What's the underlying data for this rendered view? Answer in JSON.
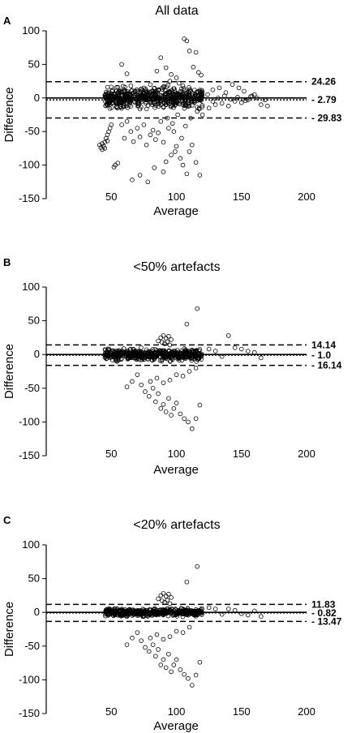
{
  "chart_data": [
    {
      "type": "scatter",
      "letter": "A",
      "title": "All data",
      "xlabel": "Average",
      "ylabel": "Difference",
      "xlim": [
        0,
        200
      ],
      "ylim": [
        -150,
        100
      ],
      "xticks": [
        50,
        100,
        150,
        200
      ],
      "yticks": [
        100,
        50,
        0,
        -50,
        -100,
        -150
      ],
      "grid": false,
      "lines": [
        {
          "y": 24.26,
          "label": "24.26",
          "style": "dashed"
        },
        {
          "y": -2.79,
          "label": "- 2.79",
          "style": "dotted"
        },
        {
          "y": -29.83,
          "label": "- 29.83",
          "style": "dashed"
        }
      ],
      "points": [
        [
          41,
          -70
        ],
        [
          42,
          -74
        ],
        [
          43,
          -77
        ],
        [
          44,
          -72
        ],
        [
          45,
          -66
        ],
        [
          46,
          -60
        ],
        [
          47,
          -55
        ],
        [
          48,
          -50
        ],
        [
          43,
          -68
        ],
        [
          45,
          -75
        ],
        [
          47,
          -64
        ],
        [
          49,
          -45
        ],
        [
          50,
          -40
        ],
        [
          52,
          -103
        ],
        [
          53,
          -100
        ],
        [
          55,
          -97
        ],
        [
          58,
          50
        ],
        [
          62,
          36
        ],
        [
          66,
          -122
        ],
        [
          72,
          -115
        ],
        [
          78,
          -125
        ],
        [
          83,
          -104
        ],
        [
          90,
          -110
        ],
        [
          92,
          -95
        ],
        [
          96,
          -85
        ],
        [
          99,
          -80
        ],
        [
          100,
          -72
        ],
        [
          103,
          -90
        ],
        [
          105,
          -100
        ],
        [
          108,
          -113
        ],
        [
          110,
          -80
        ],
        [
          112,
          -70
        ],
        [
          115,
          -96
        ],
        [
          118,
          -115
        ],
        [
          106,
          88
        ],
        [
          108,
          85
        ],
        [
          110,
          70
        ],
        [
          115,
          68
        ],
        [
          117,
          38
        ],
        [
          119,
          34
        ],
        [
          113,
          46
        ],
        [
          88,
          60
        ],
        [
          92,
          45
        ],
        [
          96,
          35
        ],
        [
          100,
          30
        ],
        [
          85,
          40
        ],
        [
          60,
          -60
        ],
        [
          65,
          -50
        ],
        [
          70,
          -45
        ],
        [
          75,
          -40
        ],
        [
          80,
          -55
        ],
        [
          84,
          -62
        ],
        [
          88,
          -35
        ],
        [
          94,
          -45
        ],
        [
          98,
          -50
        ],
        [
          104,
          -60
        ],
        [
          58,
          -40
        ],
        [
          62,
          -35
        ],
        [
          67,
          -65
        ],
        [
          72,
          -58
        ],
        [
          77,
          -70
        ],
        [
          82,
          -48
        ],
        [
          86,
          -52
        ],
        [
          90,
          -66
        ],
        [
          93,
          -30
        ],
        [
          97,
          -38
        ],
        [
          101,
          -25
        ],
        [
          107,
          -42
        ],
        [
          111,
          -30
        ],
        [
          116,
          -20
        ],
        [
          120,
          -25
        ],
        [
          125,
          -15
        ],
        [
          130,
          -10
        ],
        [
          135,
          -8
        ],
        [
          140,
          -12
        ],
        [
          145,
          -5
        ],
        [
          150,
          -7
        ],
        [
          155,
          -3
        ],
        [
          160,
          5
        ],
        [
          165,
          -10
        ],
        [
          170,
          -12
        ],
        [
          128,
          12
        ],
        [
          133,
          15
        ],
        [
          138,
          8
        ],
        [
          143,
          20
        ],
        [
          148,
          15
        ],
        [
          152,
          10
        ],
        [
          158,
          3
        ],
        [
          102,
          22
        ],
        [
          105,
          18
        ],
        [
          95,
          25
        ],
        [
          89,
          15
        ],
        [
          86,
          12
        ],
        [
          80,
          20
        ],
        [
          75,
          15
        ],
        [
          70,
          10
        ],
        [
          65,
          18
        ],
        [
          60,
          12
        ],
        [
          55,
          8
        ],
        [
          124,
          5
        ],
        [
          128,
          -5
        ],
        [
          132,
          0
        ],
        [
          137,
          3
        ],
        [
          142,
          -2
        ],
        [
          147,
          1
        ],
        [
          153,
          -4
        ],
        [
          157,
          2
        ],
        [
          162,
          0
        ],
        [
          168,
          -3
        ]
      ],
      "cluster": {
        "x_min": 45,
        "x_max": 120,
        "y_spread": 22,
        "count": 520
      }
    },
    {
      "type": "scatter",
      "letter": "B",
      "title": "<50% artefacts",
      "xlabel": "Average",
      "ylabel": "Difference",
      "xlim": [
        0,
        200
      ],
      "ylim": [
        -150,
        100
      ],
      "xticks": [
        50,
        100,
        150,
        200
      ],
      "yticks": [
        100,
        50,
        0,
        -50,
        -100,
        -150
      ],
      "grid": false,
      "lines": [
        {
          "y": 14.14,
          "label": "14.14",
          "style": "dashed"
        },
        {
          "y": -1.0,
          "label": "- 1.0",
          "style": "dotted"
        },
        {
          "y": -16.14,
          "label": "- 16.14",
          "style": "dashed"
        }
      ],
      "points": [
        [
          116,
          68
        ],
        [
          108,
          45
        ],
        [
          62,
          -48
        ],
        [
          66,
          -40
        ],
        [
          70,
          -30
        ],
        [
          73,
          -45
        ],
        [
          76,
          -55
        ],
        [
          79,
          -62
        ],
        [
          82,
          -50
        ],
        [
          84,
          -70
        ],
        [
          86,
          -58
        ],
        [
          88,
          -80
        ],
        [
          90,
          -74
        ],
        [
          92,
          -85
        ],
        [
          94,
          -65
        ],
        [
          96,
          -90
        ],
        [
          98,
          -80
        ],
        [
          100,
          -72
        ],
        [
          103,
          -88
        ],
        [
          106,
          -95
        ],
        [
          109,
          -100
        ],
        [
          112,
          -110
        ],
        [
          115,
          -95
        ],
        [
          118,
          -75
        ],
        [
          80,
          -40
        ],
        [
          85,
          -35
        ],
        [
          90,
          -42
        ],
        [
          95,
          -38
        ],
        [
          100,
          -30
        ],
        [
          105,
          -32
        ],
        [
          110,
          -25
        ],
        [
          115,
          -20
        ],
        [
          88,
          25
        ],
        [
          90,
          28
        ],
        [
          92,
          24
        ],
        [
          94,
          27
        ],
        [
          96,
          22
        ],
        [
          86,
          20
        ],
        [
          89,
          18
        ],
        [
          91,
          16
        ],
        [
          93,
          19
        ],
        [
          95,
          14
        ],
        [
          140,
          28
        ],
        [
          145,
          10
        ],
        [
          150,
          8
        ],
        [
          155,
          5
        ],
        [
          160,
          3
        ],
        [
          165,
          -5
        ],
        [
          130,
          5
        ],
        [
          135,
          -3
        ],
        [
          125,
          8
        ]
      ],
      "cluster": {
        "x_min": 45,
        "x_max": 120,
        "y_spread": 12,
        "count": 480
      }
    },
    {
      "type": "scatter",
      "letter": "C",
      "title": "<20% artefacts",
      "xlabel": "Average",
      "ylabel": "Difference",
      "xlim": [
        0,
        200
      ],
      "ylim": [
        -150,
        100
      ],
      "xticks": [
        50,
        100,
        150,
        200
      ],
      "yticks": [
        100,
        50,
        0,
        -50,
        -100,
        -150
      ],
      "grid": false,
      "lines": [
        {
          "y": 11.83,
          "label": "11.83",
          "style": "dashed"
        },
        {
          "y": -0.82,
          "label": "- 0.82",
          "style": "dotted"
        },
        {
          "y": -13.47,
          "label": "- 13.47",
          "style": "dashed"
        }
      ],
      "points": [
        [
          116,
          68
        ],
        [
          108,
          45
        ],
        [
          62,
          -48
        ],
        [
          66,
          -38
        ],
        [
          70,
          -30
        ],
        [
          73,
          -42
        ],
        [
          76,
          -52
        ],
        [
          79,
          -58
        ],
        [
          82,
          -48
        ],
        [
          84,
          -65
        ],
        [
          86,
          -55
        ],
        [
          88,
          -78
        ],
        [
          90,
          -70
        ],
        [
          92,
          -82
        ],
        [
          94,
          -62
        ],
        [
          96,
          -88
        ],
        [
          98,
          -78
        ],
        [
          100,
          -70
        ],
        [
          103,
          -85
        ],
        [
          106,
          -92
        ],
        [
          109,
          -98
        ],
        [
          112,
          -108
        ],
        [
          115,
          -93
        ],
        [
          118,
          -74
        ],
        [
          80,
          -38
        ],
        [
          85,
          -33
        ],
        [
          90,
          -40
        ],
        [
          95,
          -36
        ],
        [
          100,
          -28
        ],
        [
          105,
          -30
        ],
        [
          110,
          -22
        ],
        [
          88,
          25
        ],
        [
          90,
          28
        ],
        [
          92,
          24
        ],
        [
          94,
          27
        ],
        [
          96,
          22
        ],
        [
          86,
          20
        ],
        [
          89,
          17
        ],
        [
          91,
          15
        ],
        [
          93,
          18
        ],
        [
          95,
          13
        ],
        [
          140,
          5
        ],
        [
          145,
          3
        ],
        [
          150,
          -2
        ],
        [
          155,
          -4
        ],
        [
          160,
          2
        ],
        [
          165,
          -6
        ],
        [
          130,
          5
        ],
        [
          135,
          -3
        ],
        [
          125,
          7
        ]
      ],
      "cluster": {
        "x_min": 45,
        "x_max": 120,
        "y_spread": 8,
        "count": 460
      }
    }
  ]
}
